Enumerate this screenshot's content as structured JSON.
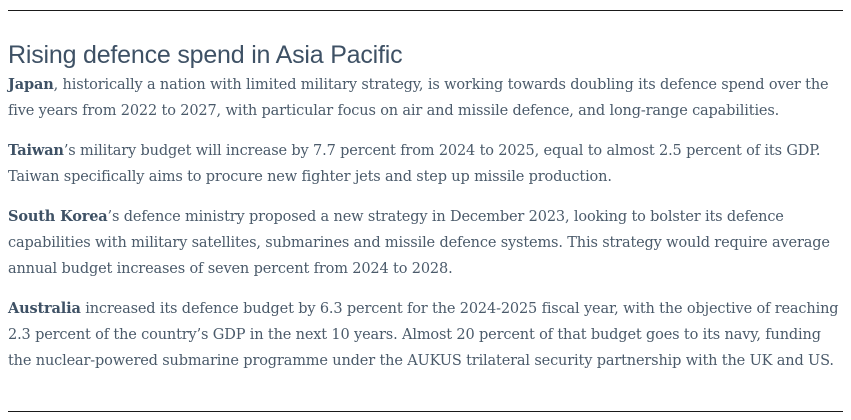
{
  "article": {
    "title": "Rising defence spend in Asia Pacific",
    "paragraphs": [
      {
        "lead": "Japan",
        "text": ", historically a nation with limited military strategy, is working towards doubling its defence spend over the five years from 2022 to 2027, with particular focus on air and missile defence, and long-range capabilities."
      },
      {
        "lead": "Taiwan",
        "text": "’s military budget will increase by 7.7 percent from 2024 to 2025, equal to almost 2.5 percent of its GDP. Taiwan specifically aims to procure new fighter jets and step up missile production."
      },
      {
        "lead": "South Korea",
        "text": "’s defence ministry proposed a new strategy in December 2023, looking to bolster its defence capabilities with military satellites, submarines and missile defence systems. This strategy would require average annual budget increases of seven percent from 2024 to 2028."
      },
      {
        "lead": "Australia",
        "text": " increased its defence budget by 6.3 percent for the 2024-2025 fiscal year, with the objective of reaching 2.3 percent of the country’s GDP in the next 10 years. Almost 20 percent of that budget goes to its navy, funding the nuclear-powered submarine programme under the AUKUS trilateral security partnership with the UK and US."
      }
    ]
  },
  "colors": {
    "heading": "#3e5165",
    "body_text": "#4a5a6a",
    "rule": "#1a1a1a"
  }
}
